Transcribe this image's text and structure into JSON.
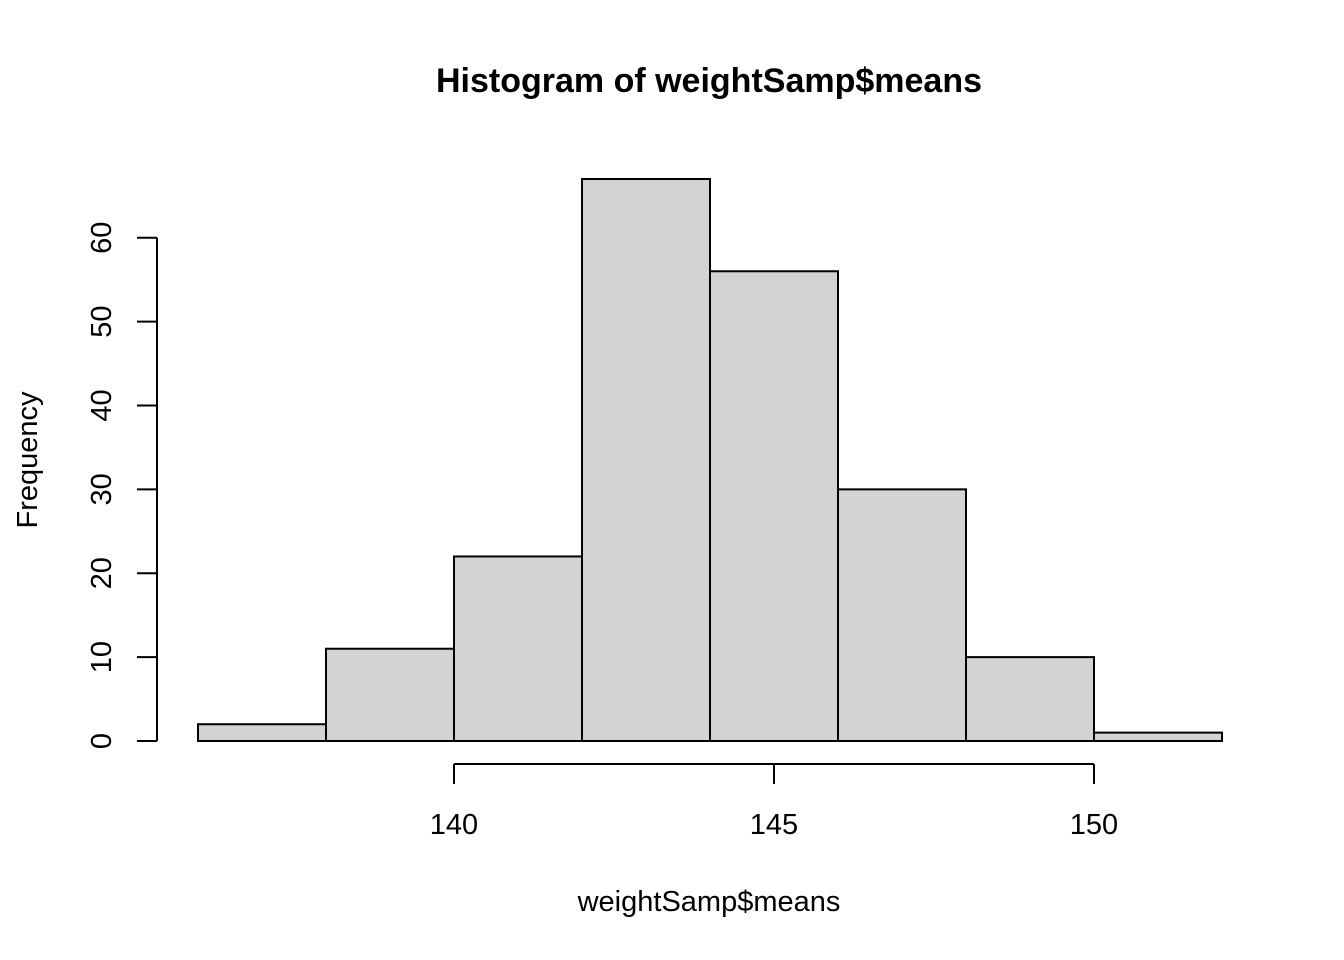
{
  "chart_data": {
    "type": "bar",
    "subtype": "histogram",
    "title": "Histogram of weightSamp$means",
    "xlabel": "weightSamp$means",
    "ylabel": "Frequency",
    "bins": [
      {
        "start": 136,
        "end": 138,
        "count": 2
      },
      {
        "start": 138,
        "end": 140,
        "count": 11
      },
      {
        "start": 140,
        "end": 142,
        "count": 22
      },
      {
        "start": 142,
        "end": 144,
        "count": 67
      },
      {
        "start": 144,
        "end": 146,
        "count": 56
      },
      {
        "start": 146,
        "end": 148,
        "count": 30
      },
      {
        "start": 148,
        "end": 150,
        "count": 10
      },
      {
        "start": 150,
        "end": 152,
        "count": 1
      }
    ],
    "x_ticks": [
      140,
      145,
      150
    ],
    "x_tick_labels": [
      "140",
      "145",
      "150"
    ],
    "y_ticks": [
      0,
      10,
      20,
      30,
      40,
      50,
      60
    ],
    "y_tick_labels": [
      "0",
      "10",
      "20",
      "30",
      "40",
      "50",
      "60"
    ],
    "xlim": [
      136,
      152
    ],
    "ylim": [
      0,
      67
    ],
    "grid": false,
    "legend": "none",
    "colors": {
      "bar_fill": "#d3d3d3",
      "bar_stroke": "#000000"
    }
  }
}
